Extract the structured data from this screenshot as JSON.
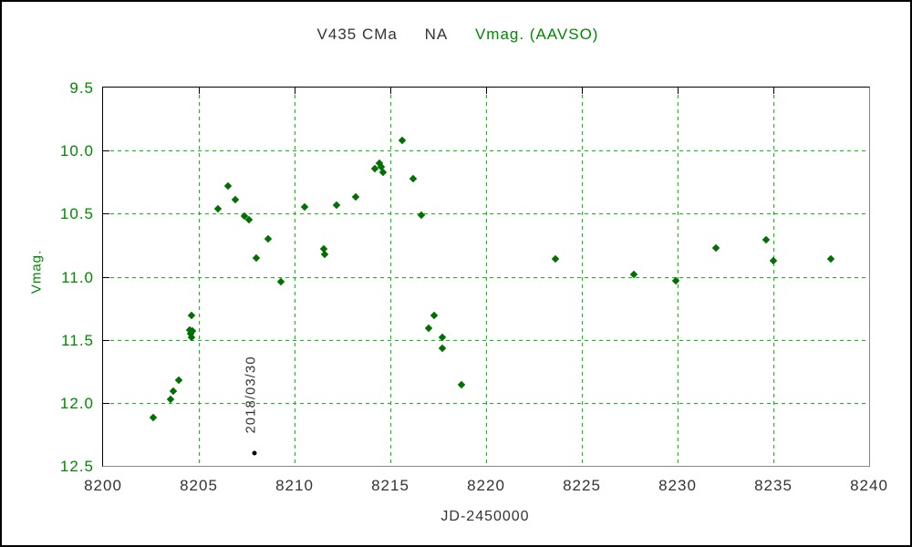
{
  "title": {
    "object": "V435 CMa",
    "band": "NA",
    "series_label": "Vmag. (AAVSO)"
  },
  "axes": {
    "x_label": "JD-2450000",
    "y_label": "Vmag."
  },
  "annotation": {
    "date_label": "2018/03/30"
  },
  "colors": {
    "data_point": "#007000",
    "grid": "#00cc00",
    "green_text": "#008800",
    "black_text": "#333333",
    "axis_dark": "#000000",
    "axis_light": "#888888",
    "annotation_point": "#000000"
  },
  "chart_data": {
    "type": "scatter",
    "title": "V435 CMa  NA  Vmag. (AAVSO)",
    "xlabel": "JD-2450000",
    "ylabel": "Vmag.",
    "xlim": [
      8200,
      8240
    ],
    "ylim": [
      9.5,
      12.5
    ],
    "y_axis_inverted_magnitudes": true,
    "x_ticks": [
      8200,
      8205,
      8210,
      8215,
      8220,
      8225,
      8230,
      8235,
      8240
    ],
    "y_ticks": [
      9.5,
      10.0,
      10.5,
      11.0,
      11.5,
      12.0,
      12.5
    ],
    "grid": true,
    "legend_position": "title",
    "series": [
      {
        "name": "Vmag. (AAVSO)",
        "marker": "diamond",
        "color": "#007000",
        "points": [
          [
            8202.6,
            12.12
          ],
          [
            8203.5,
            11.97
          ],
          [
            8203.65,
            11.91
          ],
          [
            8203.95,
            11.82
          ],
          [
            8204.5,
            11.42
          ],
          [
            8204.55,
            11.45
          ],
          [
            8204.6,
            11.48
          ],
          [
            8204.65,
            11.43
          ],
          [
            8204.6,
            11.31
          ],
          [
            8206.0,
            10.46
          ],
          [
            8206.5,
            10.28
          ],
          [
            8206.9,
            10.39
          ],
          [
            8207.4,
            10.52
          ],
          [
            8207.6,
            10.55
          ],
          [
            8208.0,
            10.85
          ],
          [
            8208.6,
            10.7
          ],
          [
            8209.3,
            11.04
          ],
          [
            8210.5,
            10.45
          ],
          [
            8211.5,
            10.78
          ],
          [
            8211.55,
            10.82
          ],
          [
            8212.2,
            10.43
          ],
          [
            8213.2,
            10.37
          ],
          [
            8214.2,
            10.14
          ],
          [
            8214.45,
            10.1
          ],
          [
            8214.5,
            10.13
          ],
          [
            8214.6,
            10.17
          ],
          [
            8215.6,
            9.92
          ],
          [
            8216.2,
            10.22
          ],
          [
            8216.6,
            10.51
          ],
          [
            8217.0,
            11.41
          ],
          [
            8217.3,
            11.31
          ],
          [
            8217.7,
            11.48
          ],
          [
            8217.7,
            11.57
          ],
          [
            8218.7,
            11.86
          ],
          [
            8223.6,
            10.86
          ],
          [
            8227.7,
            10.98
          ],
          [
            8229.9,
            11.03
          ],
          [
            8232.0,
            10.77
          ],
          [
            8234.6,
            10.71
          ],
          [
            8235.0,
            10.87
          ],
          [
            8238.0,
            10.86
          ]
        ]
      },
      {
        "name": "annotated-observation",
        "marker": "circle",
        "color": "#000000",
        "annotation": "2018/03/30",
        "points": [
          [
            8207.9,
            12.4
          ]
        ]
      }
    ]
  }
}
